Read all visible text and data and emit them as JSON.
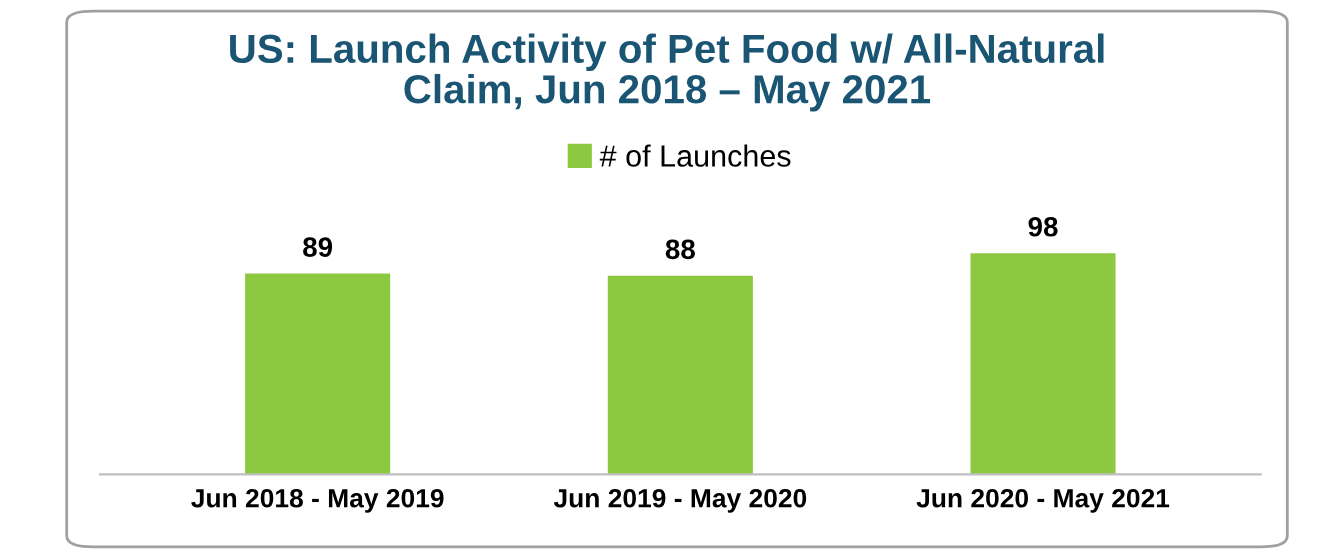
{
  "chart_data": {
    "type": "bar",
    "title": "US: Launch Activity of Pet Food w/ All-Natural\nClaim, Jun 2018 – May 2021",
    "categories": [
      "Jun 2018 - May 2019",
      "Jun 2019 - May 2020",
      "Jun 2020 - May 2021"
    ],
    "series": [
      {
        "name": "# of Launches",
        "color": "#8cc840",
        "values": [
          89,
          88,
          98
        ]
      }
    ],
    "tick_labels": "x",
    "data_labels": true,
    "legend": "top",
    "grid": false
  }
}
